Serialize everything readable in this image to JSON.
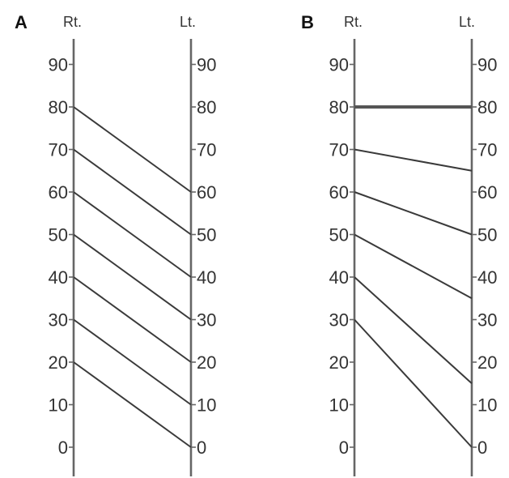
{
  "panels": [
    {
      "letter": "A",
      "left_label": "Rt.",
      "right_label": "Lt.",
      "ticks": [
        0,
        10,
        20,
        30,
        40,
        50,
        60,
        70,
        80,
        90
      ],
      "connections": [
        {
          "rt": 80,
          "lt": 60
        },
        {
          "rt": 70,
          "lt": 50
        },
        {
          "rt": 60,
          "lt": 40
        },
        {
          "rt": 50,
          "lt": 30
        },
        {
          "rt": 40,
          "lt": 20
        },
        {
          "rt": 30,
          "lt": 10
        },
        {
          "rt": 20,
          "lt": 0
        }
      ]
    },
    {
      "letter": "B",
      "left_label": "Rt.",
      "right_label": "Lt.",
      "ticks": [
        0,
        10,
        20,
        30,
        40,
        50,
        60,
        70,
        80,
        90
      ],
      "connections": [
        {
          "rt": 80,
          "lt": 80
        },
        {
          "rt": 70,
          "lt": 65
        },
        {
          "rt": 60,
          "lt": 50
        },
        {
          "rt": 50,
          "lt": 35
        },
        {
          "rt": 40,
          "lt": 15
        },
        {
          "rt": 30,
          "lt": 0
        }
      ]
    }
  ]
}
